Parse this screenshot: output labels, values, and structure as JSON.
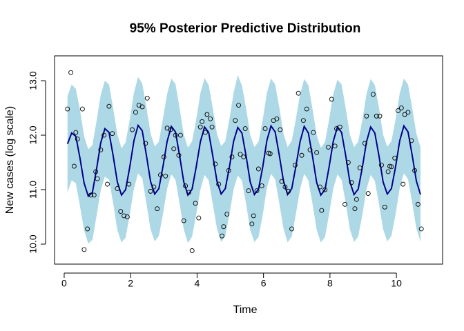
{
  "chart_data": {
    "type": "line",
    "title": "95% Posterior Predictive Distribution",
    "x_label": "Time",
    "y_label": "New cases (log scale)",
    "xlim": [
      -0.29,
      11.39
    ],
    "ylim": [
      9.633,
      13.456
    ],
    "xticks": [
      0,
      2,
      4,
      6,
      8,
      10
    ],
    "yticks": [
      {
        "value": 10,
        "label": "10.0"
      },
      {
        "value": 11,
        "label": "11.0"
      },
      {
        "value": 12,
        "label": "12.0"
      },
      {
        "value": 13,
        "label": "13.0"
      }
    ],
    "x": [
      0.1,
      0.225,
      0.35,
      0.475,
      0.6,
      0.725,
      0.85,
      0.975,
      1.1,
      1.225,
      1.35,
      1.475,
      1.6,
      1.725,
      1.85,
      1.975,
      2.1,
      2.225,
      2.35,
      2.475,
      2.6,
      2.725,
      2.85,
      2.975,
      3.1,
      3.225,
      3.35,
      3.475,
      3.6,
      3.725,
      3.85,
      3.975,
      4.1,
      4.225,
      4.35,
      4.475,
      4.6,
      4.725,
      4.85,
      4.975,
      5.1,
      5.225,
      5.35,
      5.475,
      5.6,
      5.725,
      5.85,
      5.975,
      6.1,
      6.225,
      6.35,
      6.475,
      6.6,
      6.725,
      6.85,
      6.975,
      7.1,
      7.225,
      7.35,
      7.475,
      7.6,
      7.725,
      7.85,
      7.975,
      8.1,
      8.225,
      8.35,
      8.475,
      8.6,
      8.725,
      8.85,
      8.975,
      9.1,
      9.225,
      9.35,
      9.475,
      9.6,
      9.725,
      9.85,
      9.975,
      10.1,
      10.225,
      10.35,
      10.475,
      10.6,
      10.725
    ],
    "band": {
      "color": "#add8e6",
      "upper": [
        12.72,
        12.93,
        12.85,
        12.47,
        11.98,
        11.74,
        11.82,
        12.26,
        12.74,
        13.0,
        12.93,
        12.49,
        12.02,
        11.76,
        11.87,
        12.29,
        12.78,
        13.07,
        12.95,
        12.51,
        12.03,
        11.79,
        11.88,
        12.31,
        12.76,
        13.04,
        12.94,
        12.49,
        12.01,
        11.77,
        11.89,
        12.29,
        12.77,
        13.05,
        12.92,
        12.49,
        12.02,
        11.8,
        11.89,
        12.3,
        12.78,
        13.1,
        12.91,
        12.5,
        12.0,
        11.78,
        11.88,
        12.28,
        12.77,
        13.04,
        12.93,
        12.51,
        12.03,
        11.78,
        11.9,
        12.3,
        12.75,
        13.03,
        12.92,
        12.48,
        12.0,
        11.77,
        11.87,
        12.29,
        12.76,
        13.02,
        12.93,
        12.49,
        12.01,
        11.78,
        11.88,
        12.28,
        12.76,
        13.03,
        12.92,
        12.5,
        12.01,
        11.79,
        11.89,
        12.29,
        12.77,
        13.04,
        12.93,
        12.5,
        12.03,
        11.78
      ],
      "lower": [
        10.95,
        11.17,
        11.12,
        10.7,
        10.25,
        10.01,
        10.08,
        10.52,
        10.99,
        11.24,
        11.18,
        10.75,
        10.26,
        10.03,
        10.12,
        10.55,
        11.02,
        11.3,
        11.21,
        10.75,
        10.27,
        10.05,
        10.15,
        10.56,
        11.02,
        11.28,
        11.18,
        10.74,
        10.27,
        10.02,
        10.14,
        10.54,
        11.0,
        11.27,
        11.17,
        10.73,
        10.28,
        10.04,
        10.15,
        10.55,
        11.01,
        11.26,
        11.17,
        10.74,
        10.26,
        10.04,
        10.13,
        10.53,
        11.03,
        11.29,
        11.19,
        10.75,
        10.29,
        10.03,
        10.14,
        10.56,
        11.01,
        11.29,
        11.17,
        10.74,
        10.26,
        10.03,
        10.13,
        10.55,
        11.02,
        11.28,
        11.18,
        10.75,
        10.27,
        10.04,
        10.14,
        10.54,
        11.01,
        11.27,
        11.16,
        10.74,
        10.27,
        10.05,
        10.15,
        10.55,
        11.03,
        11.3,
        11.19,
        10.76,
        10.29,
        10.04
      ]
    },
    "line": {
      "color": "#00008b",
      "values": [
        11.84,
        12.04,
        11.98,
        11.58,
        11.12,
        10.88,
        10.95,
        11.38,
        11.86,
        12.12,
        12.05,
        11.62,
        11.14,
        10.9,
        11.0,
        11.42,
        11.9,
        12.18,
        12.08,
        11.63,
        11.15,
        10.92,
        11.02,
        11.43,
        11.89,
        12.16,
        12.06,
        11.62,
        11.14,
        10.9,
        11.01,
        11.42,
        11.88,
        12.15,
        12.05,
        11.61,
        11.15,
        10.92,
        11.02,
        11.42,
        11.89,
        12.14,
        12.04,
        11.62,
        11.14,
        10.91,
        11.01,
        11.41,
        11.9,
        12.17,
        12.06,
        11.63,
        11.16,
        10.91,
        11.02,
        11.43,
        11.88,
        12.16,
        12.04,
        11.61,
        11.13,
        10.9,
        11.0,
        11.42,
        11.89,
        12.15,
        12.05,
        11.62,
        11.14,
        10.91,
        11.01,
        11.41,
        11.88,
        12.15,
        12.04,
        11.62,
        11.14,
        10.92,
        11.02,
        11.42,
        11.9,
        12.17,
        12.06,
        11.63,
        11.16,
        10.91
      ]
    },
    "points": {
      "color": "#000000",
      "x": [
        0.1,
        0.2,
        0.3,
        0.35,
        0.4,
        0.55,
        0.6,
        0.7,
        0.8,
        0.9,
        0.95,
        1.0,
        1.1,
        1.2,
        1.3,
        1.35,
        1.45,
        1.6,
        1.7,
        1.8,
        1.9,
        1.95,
        2.05,
        2.15,
        2.25,
        2.35,
        2.45,
        2.5,
        2.6,
        2.7,
        2.8,
        2.9,
        3.0,
        3.05,
        3.1,
        3.2,
        3.3,
        3.35,
        3.45,
        3.5,
        3.6,
        3.65,
        3.75,
        3.85,
        3.95,
        4.05,
        4.1,
        4.15,
        4.25,
        4.3,
        4.4,
        4.45,
        4.55,
        4.65,
        4.75,
        4.8,
        4.9,
        4.95,
        5.05,
        5.15,
        5.25,
        5.3,
        5.4,
        5.45,
        5.55,
        5.65,
        5.7,
        5.8,
        5.85,
        5.95,
        6.05,
        6.15,
        6.2,
        6.3,
        6.4,
        6.5,
        6.55,
        6.65,
        6.75,
        6.85,
        6.95,
        7.05,
        7.15,
        7.2,
        7.3,
        7.4,
        7.5,
        7.6,
        7.7,
        7.75,
        7.85,
        7.95,
        8.05,
        8.15,
        8.2,
        8.3,
        8.45,
        8.55,
        8.65,
        8.75,
        8.8,
        8.9,
        9.05,
        9.1,
        9.15,
        9.3,
        9.4,
        9.5,
        9.55,
        9.65,
        9.75,
        9.8,
        9.85,
        9.95,
        10.05,
        10.15,
        10.2,
        10.25,
        10.35,
        10.45,
        10.55,
        10.65,
        10.75
      ],
      "y": [
        12.48,
        13.15,
        11.43,
        12.05,
        11.93,
        12.48,
        9.9,
        10.28,
        10.9,
        10.9,
        11.33,
        11.2,
        11.73,
        12.0,
        11.1,
        12.53,
        12.03,
        11.02,
        10.6,
        10.52,
        10.5,
        11.1,
        12.1,
        12.42,
        12.55,
        12.52,
        11.85,
        12.68,
        10.97,
        11.05,
        10.65,
        11.27,
        11.6,
        11.25,
        12.13,
        12.1,
        11.75,
        12.0,
        11.63,
        12.0,
        10.43,
        11.07,
        10.95,
        9.88,
        10.75,
        10.48,
        12.15,
        12.25,
        12.05,
        12.38,
        12.3,
        12.15,
        11.47,
        11.1,
        10.15,
        10.32,
        10.55,
        11.35,
        11.6,
        12.27,
        12.55,
        11.65,
        11.6,
        12.12,
        10.98,
        10.37,
        10.52,
        10.98,
        11.38,
        11.07,
        12.12,
        11.67,
        11.66,
        12.27,
        12.3,
        12.1,
        11.15,
        11.05,
        10.97,
        10.28,
        11.45,
        12.77,
        11.63,
        12.27,
        12.48,
        11.73,
        12.05,
        11.68,
        11.05,
        10.62,
        11.0,
        11.78,
        12.66,
        11.8,
        12.12,
        12.15,
        10.73,
        11.5,
        11.13,
        10.65,
        10.82,
        11.4,
        11.85,
        12.35,
        10.93,
        12.75,
        12.35,
        12.35,
        11.45,
        10.68,
        11.33,
        11.43,
        11.42,
        11.58,
        12.45,
        12.5,
        11.1,
        12.38,
        12.42,
        11.9,
        11.35,
        10.73,
        10.28
      ]
    }
  }
}
